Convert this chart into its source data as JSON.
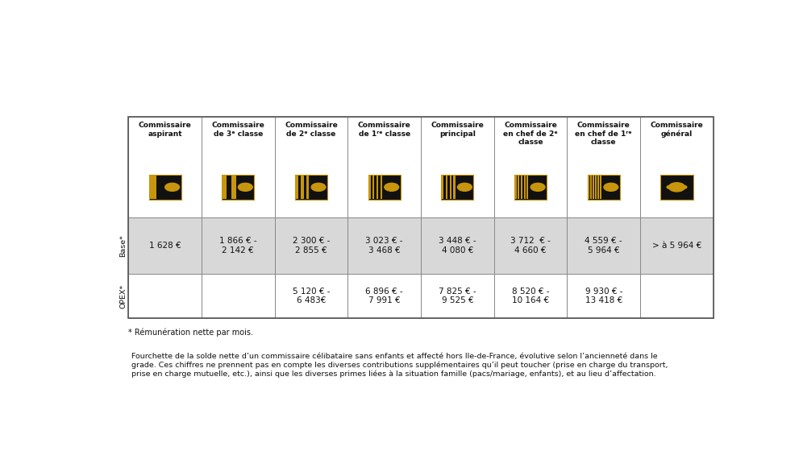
{
  "columns": [
    "Commissaire\naspirant",
    "Commissaire\nde 3ᵉ classe",
    "Commissaire\nde 2ᵉ classe",
    "Commissaire\nde 1ʳᵉ classe",
    "Commissaire\nprincipal",
    "Commissaire\nen chef de 2ᵉ\nclasse",
    "Commissaire\nen chef de 1ʳᵉ\nclasse",
    "Commissaire\ngénéral"
  ],
  "base_values": [
    "1 628 €",
    "1 866 € -\n2 142 €",
    "2 300 € -\n2 855 €",
    "3 023 € -\n3 468 €",
    "3 448 € -\n4 080 €",
    "3 712  € -\n4 660 €",
    "4 559 € -\n5 964 €",
    "> à 5 964 €"
  ],
  "opex_values": [
    "",
    "",
    "5 120 € -\n6 483€",
    "6 896 € -\n7 991 €",
    "7 825 € -\n9 525 €",
    "8 520 € -\n10 164 €",
    "9 930 € -\n13 418 €",
    ""
  ],
  "footnote": "* Rémunération nette par mois.",
  "description": "Fourchette de la solde nette d’un commissaire célibataire sans enfants et affecté hors Ile-de-France, évolutive selon l’ancienneté dans le\ngrade. Ces chiffres ne prennent pas en compte les diverses contributions supplémentaires qu’il peut toucher (prise en charge du transport,\nprise en charge mutuelle, etc.), ainsi que les diverses primes liées à la situation famille (pacs/mariage, enfants), et au lieu d’affectation.",
  "row_labels": [
    "Base*",
    "OPEX*"
  ],
  "stripe_counts": [
    1,
    2,
    3,
    4,
    4,
    5,
    6,
    0
  ],
  "bg_dark": "#111111",
  "gold": "#c8960c",
  "border_color": "#888888",
  "bg_base": "#d8d8d8",
  "bg_header": "#ffffff",
  "bg_opex": "#ffffff"
}
